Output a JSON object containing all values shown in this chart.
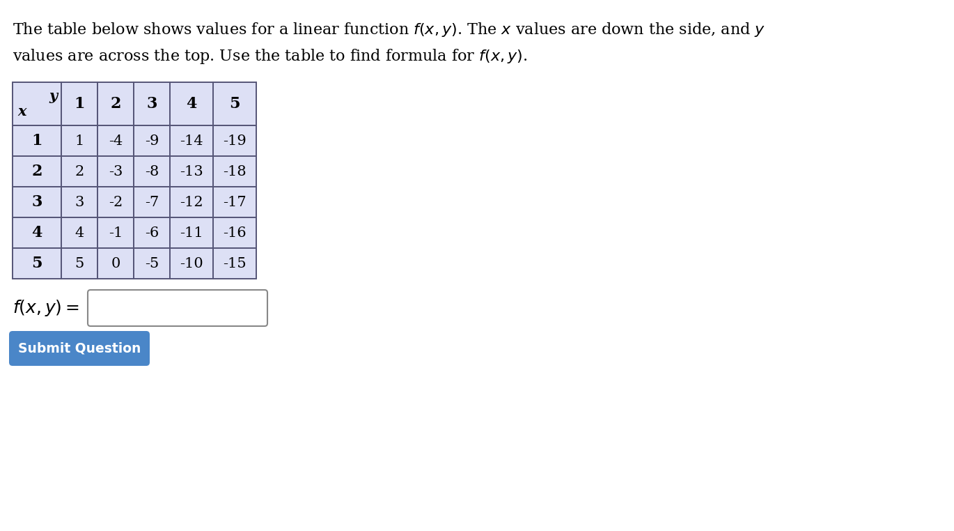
{
  "title_line1": "The table below shows values for a linear function $f(x, y)$. The $x$ values are down the side, and $y$",
  "title_line2": "values are across the top. Use the table to find formula for $f(x, y)$.",
  "header_row": [
    "",
    "1",
    "2",
    "3",
    "4",
    "5"
  ],
  "row_labels": [
    "1",
    "2",
    "3",
    "4",
    "5"
  ],
  "table_data": [
    [
      "1",
      "-4",
      "-9",
      "-14",
      "-19"
    ],
    [
      "2",
      "-3",
      "-8",
      "-13",
      "-18"
    ],
    [
      "3",
      "-2",
      "-7",
      "-12",
      "-17"
    ],
    [
      "4",
      "-1",
      "-6",
      "-11",
      "-16"
    ],
    [
      "5",
      "0",
      "-5",
      "-10",
      "-15"
    ]
  ],
  "cell_bg": "#dde0f5",
  "data_bg": "#dde0f5",
  "border_color": "#555577",
  "text_color": "#000000",
  "button_text": "Submit Question",
  "button_bg": "#4a86c8",
  "button_text_color": "#ffffff",
  "bg_color": "#ffffff"
}
